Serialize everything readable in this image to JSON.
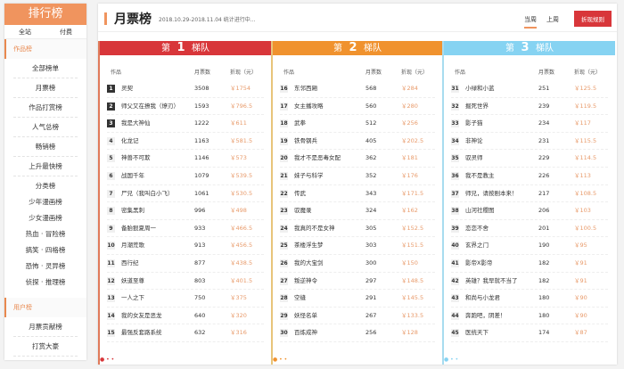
{
  "sidebar": {
    "title": "排行榜",
    "tabs": [
      "全站",
      "付费"
    ],
    "section1": "作品榜",
    "items1": [
      "全部榜单",
      "月票榜",
      "作品打赏榜",
      "人气总榜",
      "畅销榜",
      "上升最快榜"
    ],
    "items2": [
      "分类榜",
      "少年漫画榜",
      "少女漫画榜",
      "热血 · 冒险榜",
      "搞笑 · 四格榜",
      "恐怖 · 灵异榜",
      "侦探 · 推理榜"
    ],
    "section2": "用户榜",
    "items3": [
      "月票贡献榜",
      "打赏大豪"
    ]
  },
  "header": {
    "title": "月票榜",
    "date": "2018.10.29-2018.11.04 统计进行中...",
    "week_current": "当周",
    "week_last": "上周",
    "rule_button": "折现规则"
  },
  "columns": {
    "work": "作品",
    "votes": "月票数",
    "cash": "折现（元）"
  },
  "tiers": [
    {
      "prefix": "第",
      "num": "1",
      "suffix": "梯队",
      "color": "#d8363a",
      "border": "#e07a5a",
      "rows": [
        [
          "1",
          "灵契",
          "3508",
          "￥1754"
        ],
        [
          "2",
          "师父又在撩我（燎刃）",
          "1593",
          "￥796.5"
        ],
        [
          "3",
          "我是大神仙",
          "1222",
          "￥611"
        ],
        [
          "4",
          "化龙记",
          "1163",
          "￥581.5"
        ],
        [
          "5",
          "神兽不可欺",
          "1146",
          "￥573"
        ],
        [
          "6",
          "战国千年",
          "1079",
          "￥539.5"
        ],
        [
          "7",
          "尸兄（我叫白小飞）",
          "1061",
          "￥530.5"
        ],
        [
          "8",
          "密集黑刺",
          "996",
          "￥498"
        ],
        [
          "9",
          "备胎狠夏周一",
          "933",
          "￥466.5"
        ],
        [
          "10",
          "月潮荒歌",
          "913",
          "￥456.5"
        ],
        [
          "11",
          "西行纪",
          "877",
          "￥438.5"
        ],
        [
          "12",
          "妖道至尊",
          "803",
          "￥401.5"
        ],
        [
          "13",
          "一人之下",
          "750",
          "￥375"
        ],
        [
          "14",
          "我的女友是恶龙",
          "640",
          "￥320"
        ],
        [
          "15",
          "最强反套路系统",
          "632",
          "￥316"
        ]
      ]
    },
    {
      "prefix": "第",
      "num": "2",
      "suffix": "梯队",
      "color": "#f0922e",
      "border": "#e8c47a",
      "rows": [
        [
          "16",
          "东邻西厢",
          "568",
          "￥284"
        ],
        [
          "17",
          "女主播攻略",
          "560",
          "￥280"
        ],
        [
          "18",
          "武拳",
          "512",
          "￥256"
        ],
        [
          "19",
          "铁骨钢兵",
          "405",
          "￥202.5"
        ],
        [
          "20",
          "我才不是恶毒女配",
          "362",
          "￥181"
        ],
        [
          "21",
          "妹子与科学",
          "352",
          "￥176"
        ],
        [
          "22",
          "传武",
          "343",
          "￥171.5"
        ],
        [
          "23",
          "驭魔录",
          "324",
          "￥162"
        ],
        [
          "24",
          "我真的不是女神",
          "305",
          "￥152.5"
        ],
        [
          "25",
          "茶楼浮生梦",
          "303",
          "￥151.5"
        ],
        [
          "26",
          "我的大宝剑",
          "300",
          "￥150"
        ],
        [
          "27",
          "叛逆神令",
          "297",
          "￥148.5"
        ],
        [
          "28",
          "空缝",
          "291",
          "￥145.5"
        ],
        [
          "29",
          "妖怪名单",
          "267",
          "￥133.5"
        ],
        [
          "30",
          "百炼成神",
          "256",
          "￥128"
        ]
      ]
    },
    {
      "prefix": "第",
      "num": "3",
      "suffix": "梯队",
      "color": "#86d3f2",
      "border": "#a8dcef",
      "rows": [
        [
          "31",
          "小绿和小蓝",
          "251",
          "￥125.5"
        ],
        [
          "32",
          "掘死世界",
          "239",
          "￥119.5"
        ],
        [
          "33",
          "影子猫",
          "234",
          "￥117"
        ],
        [
          "34",
          "非神论",
          "231",
          "￥115.5"
        ],
        [
          "35",
          "驭灵师",
          "229",
          "￥114.5"
        ],
        [
          "36",
          "我不是教主",
          "226",
          "￥113"
        ],
        [
          "37",
          "师兄，请按剧本来！",
          "217",
          "￥108.5"
        ],
        [
          "38",
          "山河社稷图",
          "206",
          "￥103"
        ],
        [
          "39",
          "恋恋不舍",
          "201",
          "￥100.5"
        ],
        [
          "40",
          "玄界之门",
          "190",
          "￥95"
        ],
        [
          "41",
          "影帝X影帝",
          "182",
          "￥91"
        ],
        [
          "42",
          "英雄？我早就不当了",
          "182",
          "￥91"
        ],
        [
          "43",
          "和尚与小龙君",
          "180",
          "￥90"
        ],
        [
          "44",
          "奔跑吧，阴差！",
          "180",
          "￥90"
        ],
        [
          "45",
          "医统天下",
          "174",
          "￥87"
        ]
      ]
    }
  ]
}
